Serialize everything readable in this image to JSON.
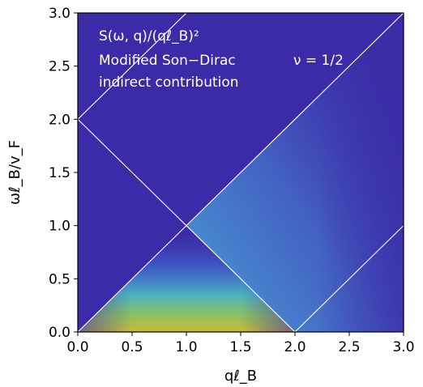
{
  "chart_data": {
    "type": "heatmap",
    "title_lines": [
      "S(ω, q)/(qℓ_B)²",
      "Modified Son−Dirac",
      "indirect contribution"
    ],
    "annotation": "ν = 1/2",
    "xlabel": "qℓ_B",
    "ylabel": "ωℓ_B/v_F",
    "xlim": [
      0.0,
      3.0
    ],
    "ylim": [
      0.0,
      3.0
    ],
    "xticks": [
      "0.0",
      "0.5",
      "1.0",
      "1.5",
      "2.0",
      "2.5",
      "3.0"
    ],
    "yticks": [
      "0.0",
      "0.5",
      "1.0",
      "1.5",
      "2.0",
      "2.5",
      "3.0"
    ],
    "colormap": "jet",
    "background_color": "#3b2ba8",
    "guide_lines": [
      {
        "x": [
          0.0,
          3.0
        ],
        "y": [
          0.0,
          3.0
        ]
      },
      {
        "x": [
          0.0,
          2.0
        ],
        "y": [
          2.0,
          0.0
        ]
      },
      {
        "x": [
          0.0,
          1.0
        ],
        "y": [
          2.0,
          3.0
        ]
      },
      {
        "x": [
          2.0,
          3.0
        ],
        "y": [
          0.0,
          1.0
        ]
      }
    ],
    "intensity_regions": [
      {
        "region": "triangle 0 < ω < min(q, 2 − q), 0 < q < 2",
        "peak_at": {
          "q": 1.0,
          "omega": 0.0
        },
        "peak_level": "high"
      },
      {
        "region": "ω < q, q > 2",
        "level": "low"
      }
    ]
  }
}
